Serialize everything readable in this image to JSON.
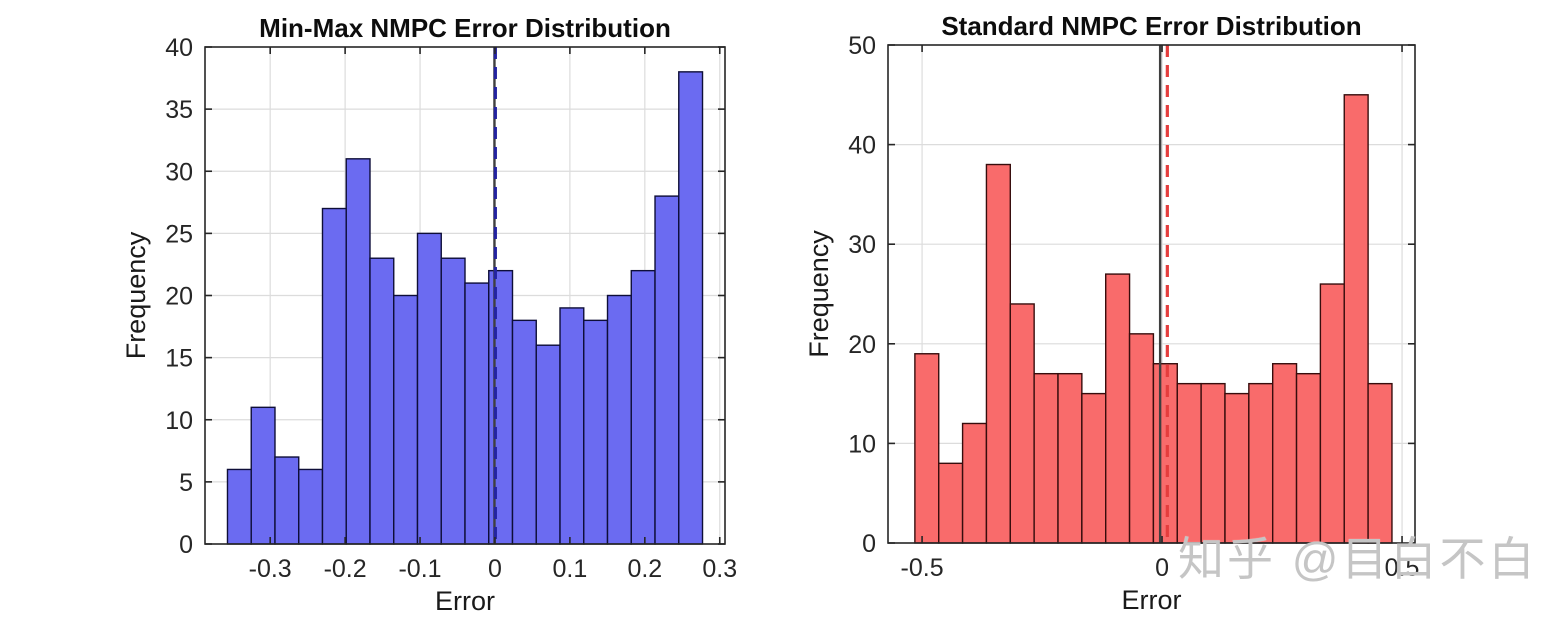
{
  "figure": {
    "background": "#ffffff",
    "grid_color": "#dcdcdc",
    "axis_color": "#262626",
    "text_color": "#1a1a1a"
  },
  "watermark": {
    "text": "知乎 @目白不白",
    "color": "#c5c5c5"
  },
  "chart_data": [
    {
      "type": "bar",
      "subtype": "histogram",
      "title": "Min-Max NMPC Error Distribution",
      "xlabel": "Error",
      "ylabel": "Frequency",
      "bar_color": "#6b6bf1",
      "bar_edge_color": "#0e0e38",
      "bin_start": -0.357,
      "bin_width": 0.0317,
      "values": [
        6,
        11,
        7,
        6,
        27,
        31,
        23,
        20,
        25,
        23,
        21,
        22,
        18,
        16,
        19,
        18,
        20,
        22,
        28,
        38
      ],
      "xlim": [
        -0.387,
        0.307
      ],
      "ylim": [
        0,
        40
      ],
      "xtick_labels": [
        "-0.3",
        "-0.2",
        "-0.1",
        "0",
        "0.1",
        "0.2",
        "0.3"
      ],
      "ytick_labels": [
        "0",
        "5",
        "10",
        "15",
        "20",
        "25",
        "30",
        "35",
        "40"
      ],
      "grid": true,
      "legend": "none",
      "vlines": [
        {
          "x": -0.0007,
          "style": "solid",
          "color": "#3f3f3f",
          "width": 2.4
        },
        {
          "x": 0.0005,
          "style": "dashed",
          "color": "#2323a0",
          "width": 3.2
        }
      ]
    },
    {
      "type": "bar",
      "subtype": "histogram",
      "title": "Standard NMPC Error Distribution",
      "xlabel": "Error",
      "ylabel": "Frequency",
      "bar_color": "#f96b6b",
      "bar_edge_color": "#370d0d",
      "bin_start": -0.515,
      "bin_width": 0.0497,
      "values": [
        19,
        8,
        12,
        38,
        24,
        17,
        17,
        15,
        27,
        21,
        18,
        16,
        16,
        15,
        16,
        18,
        17,
        26,
        45,
        16
      ],
      "xlim": [
        -0.571,
        0.527
      ],
      "ylim": [
        0,
        50
      ],
      "xtick_labels": [
        "-0.5",
        "0",
        "0.5"
      ],
      "ytick_labels": [
        "0",
        "10",
        "20",
        "30",
        "40",
        "50"
      ],
      "grid": true,
      "legend": "none",
      "vlines": [
        {
          "x": -0.004,
          "style": "solid",
          "color": "#3f3f3f",
          "width": 2.4
        },
        {
          "x": 0.011,
          "style": "dashed",
          "color": "#e43d3d",
          "width": 3.2
        }
      ]
    }
  ]
}
